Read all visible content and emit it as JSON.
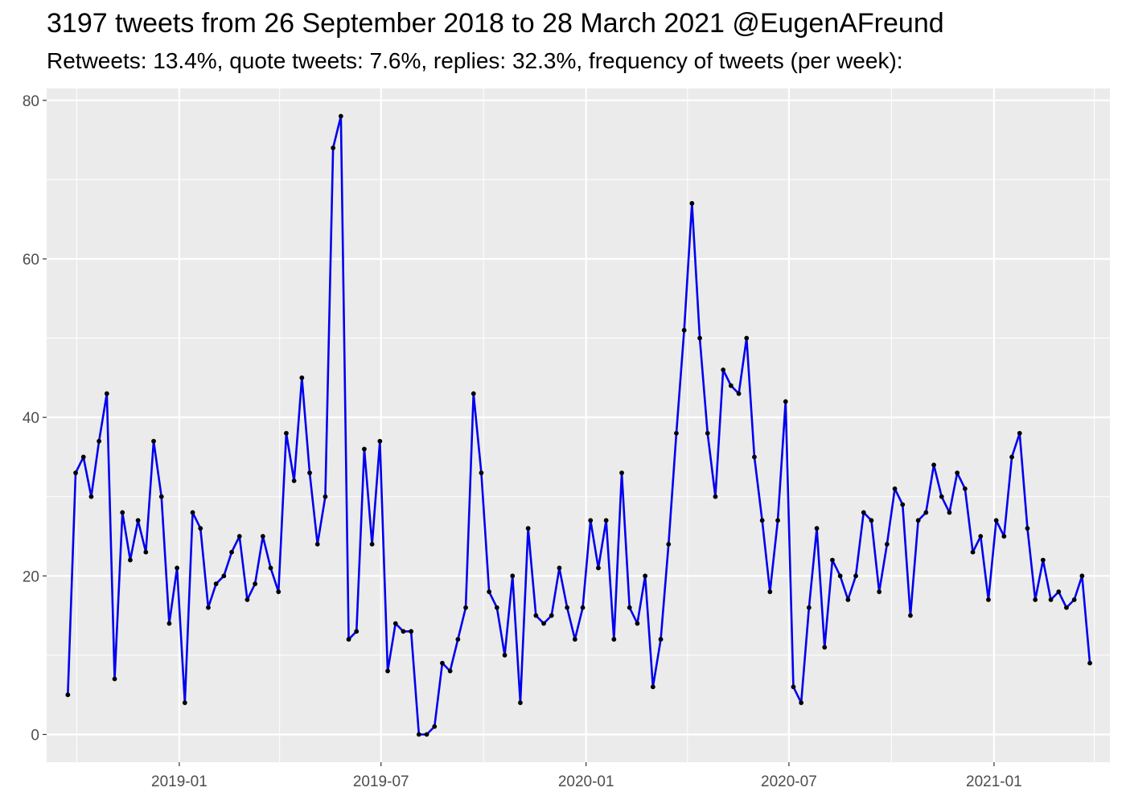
{
  "chart_data": {
    "type": "line",
    "title": "3197 tweets from 26 September 2018 to 28 March 2021 @EugenAFreund",
    "subtitle": "Retweets: 13.4%, quote tweets: 7.6%, replies: 32.3%, frequency of tweets (per week):",
    "xlabel": "",
    "ylabel": "",
    "x_start_date": "2018-09-23",
    "x_step_days": 7,
    "xlim": [
      "2018-09-04",
      "2021-04-15"
    ],
    "ylim": [
      -3.5,
      81.5
    ],
    "grid": true,
    "legend": "none",
    "x_ticks": [
      {
        "date": "2019-01-01",
        "label": "2019-01"
      },
      {
        "date": "2019-07-01",
        "label": "2019-07"
      },
      {
        "date": "2020-01-01",
        "label": "2020-01"
      },
      {
        "date": "2020-07-01",
        "label": "2020-07"
      },
      {
        "date": "2021-01-01",
        "label": "2021-01"
      }
    ],
    "x_minor_dates": [
      "2018-10-01",
      "2019-04-01",
      "2019-10-01",
      "2020-04-01",
      "2020-10-01",
      "2021-04-01"
    ],
    "y_ticks": [
      0,
      20,
      40,
      60,
      80
    ],
    "y_minor": [
      10,
      30,
      50,
      70
    ],
    "series": [
      {
        "line_color": "#0000ee",
        "point_color": "#000000",
        "values": [
          5,
          33,
          35,
          30,
          37,
          43,
          7,
          28,
          22,
          27,
          23,
          37,
          30,
          14,
          21,
          4,
          28,
          26,
          16,
          19,
          20,
          23,
          25,
          17,
          19,
          25,
          21,
          18,
          38,
          32,
          45,
          33,
          24,
          30,
          74,
          78,
          12,
          13,
          36,
          24,
          37,
          8,
          14,
          13,
          13,
          0,
          0,
          1,
          9,
          8,
          12,
          16,
          43,
          33,
          18,
          16,
          10,
          20,
          4,
          26,
          15,
          14,
          15,
          21,
          16,
          12,
          16,
          27,
          21,
          27,
          12,
          33,
          16,
          14,
          20,
          6,
          12,
          24,
          38,
          51,
          67,
          50,
          38,
          30,
          46,
          44,
          43,
          50,
          35,
          27,
          18,
          27,
          42,
          6,
          4,
          16,
          26,
          11,
          22,
          20,
          17,
          20,
          28,
          27,
          18,
          24,
          31,
          29,
          15,
          27,
          28,
          34,
          30,
          28,
          33,
          31,
          23,
          25,
          17,
          27,
          25,
          35,
          38,
          26,
          17,
          22,
          17,
          18,
          16,
          17,
          20,
          9
        ]
      }
    ]
  }
}
